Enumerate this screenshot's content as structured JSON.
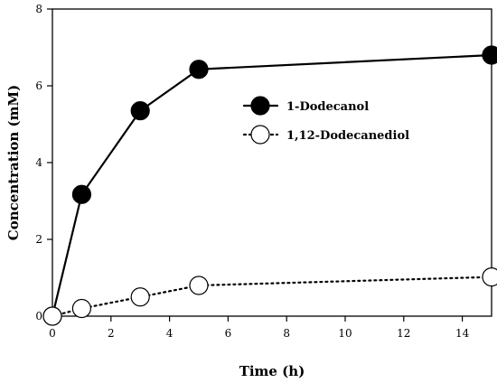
{
  "chart_data": {
    "type": "line",
    "xlabel": "Time (h)",
    "ylabel": "Concentration (mM)",
    "xlim": [
      0,
      15
    ],
    "ylim": [
      0,
      8
    ],
    "xticks": [
      0,
      2,
      4,
      6,
      8,
      10,
      12,
      14
    ],
    "yticks": [
      0,
      2,
      4,
      6,
      8
    ],
    "grid": false,
    "legend_position": "center-right",
    "series": [
      {
        "name": "1-Dodecanol",
        "x": [
          0,
          1,
          3,
          5,
          15
        ],
        "y": [
          0,
          3.17,
          5.35,
          6.43,
          6.8
        ],
        "line_style": "solid",
        "marker": "filled-circle",
        "color": "#000000"
      },
      {
        "name": "1,12-Dodecanediol",
        "x": [
          0,
          1,
          3,
          5,
          15
        ],
        "y": [
          0,
          0.2,
          0.5,
          0.8,
          1.02
        ],
        "line_style": "dotted",
        "marker": "open-circle",
        "color": "#000000"
      }
    ]
  }
}
